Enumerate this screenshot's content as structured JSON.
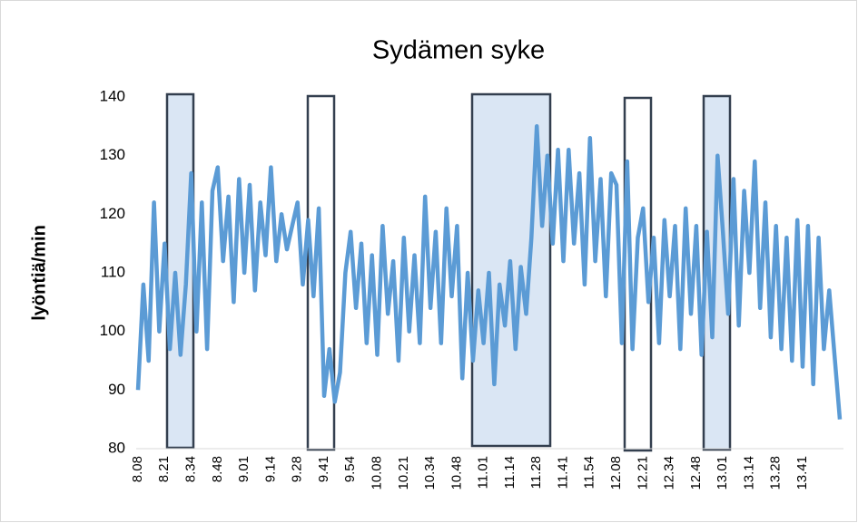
{
  "chart_data": {
    "type": "line",
    "title": "Sydämen syke",
    "y_label": "lyöntiä/min",
    "categories": [
      "8.08",
      null,
      null,
      null,
      null,
      "8.21",
      null,
      null,
      null,
      null,
      "8.34",
      null,
      null,
      null,
      null,
      "8.48",
      null,
      null,
      null,
      null,
      "9.01",
      null,
      null,
      null,
      null,
      "9.14",
      null,
      null,
      null,
      null,
      "9.28",
      null,
      null,
      null,
      null,
      "9.41",
      null,
      null,
      null,
      null,
      "9.54",
      null,
      null,
      null,
      null,
      "10.08",
      null,
      null,
      null,
      null,
      "10.21",
      null,
      null,
      null,
      null,
      "10.34",
      null,
      null,
      null,
      null,
      "10.48",
      null,
      null,
      null,
      null,
      "11.01",
      null,
      null,
      null,
      null,
      "11.14",
      null,
      null,
      null,
      null,
      "11.28",
      null,
      null,
      null,
      null,
      "11.41",
      null,
      null,
      null,
      null,
      "11.54",
      null,
      null,
      null,
      null,
      "12.08",
      null,
      null,
      null,
      null,
      "12.21",
      null,
      null,
      null,
      null,
      "12.34",
      null,
      null,
      null,
      null,
      "12.48",
      null,
      null,
      null,
      null,
      "13.01",
      null,
      null,
      null,
      null,
      "13.14",
      null,
      null,
      null,
      null,
      "13.28",
      null,
      null,
      null,
      null,
      "13.41",
      null,
      null,
      null,
      null,
      null,
      null,
      null
    ],
    "series": [
      {
        "color": "#5b9bd5",
        "values": [
          90,
          108,
          95,
          122,
          100,
          115,
          97,
          110,
          96,
          108,
          127,
          100,
          122,
          97,
          124,
          128,
          112,
          123,
          105,
          126,
          110,
          125,
          107,
          122,
          113,
          128,
          112,
          120,
          114,
          118,
          122,
          108,
          119,
          106,
          121,
          89,
          97,
          88,
          93,
          110,
          117,
          104,
          115,
          98,
          113,
          96,
          118,
          103,
          112,
          95,
          116,
          100,
          113,
          98,
          123,
          104,
          117,
          98,
          121,
          106,
          118,
          92,
          110,
          95,
          107,
          98,
          110,
          91,
          108,
          101,
          112,
          97,
          111,
          103,
          116,
          135,
          118,
          130,
          115,
          131,
          112,
          131,
          115,
          127,
          108,
          133,
          112,
          126,
          106,
          127,
          125,
          98,
          129,
          97,
          116,
          121,
          105,
          116,
          98,
          119,
          106,
          118,
          97,
          121,
          103,
          118,
          96,
          117,
          99,
          130,
          117,
          103,
          126,
          101,
          124,
          110,
          129,
          104,
          122,
          99,
          118,
          97,
          116,
          95,
          119,
          94,
          118,
          91,
          116,
          97,
          107,
          96,
          85
        ]
      }
    ],
    "ylim": [
      80,
      140
    ],
    "yticks": [
      80,
      90,
      100,
      110,
      120,
      130,
      140
    ]
  }
}
